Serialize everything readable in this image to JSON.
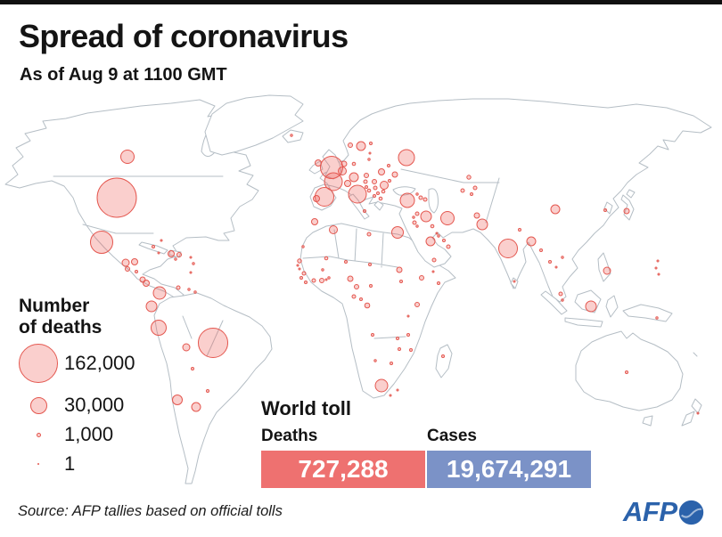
{
  "header": {
    "title": "Spread of coronavirus",
    "subtitle": "As of Aug 9 at 1100 GMT"
  },
  "legend": {
    "title": "Number\nof deaths",
    "items": [
      {
        "label": "162,000",
        "value": 162000,
        "diameter": 44
      },
      {
        "label": "30,000",
        "value": 30000,
        "diameter": 19
      },
      {
        "label": "1,000",
        "value": 1000,
        "diameter": 5
      },
      {
        "label": "1",
        "value": 1,
        "diameter": 2.5
      }
    ]
  },
  "world_toll": {
    "heading": "World toll",
    "deaths": {
      "label": "Deaths",
      "value": "727,288",
      "color": "#ee7170"
    },
    "cases": {
      "label": "Cases",
      "value": "19,674,291",
      "color": "#7b92c7"
    }
  },
  "footer": {
    "source": "Source: AFP tallies based on official tolls",
    "logo_text": "AFP"
  },
  "colors": {
    "bubble_fill": "rgba(237,96,88,0.30)",
    "bubble_stroke": "#e4574f",
    "map_outline": "#b5bec5",
    "accent_red": "#ee7170",
    "accent_blue": "#7b92c7",
    "afp_blue": "#2b62ab",
    "top_bar": "#101010"
  },
  "chart_data": {
    "type": "bubble-map",
    "title": "Spread of coronavirus",
    "unit": "number of deaths",
    "as_of": "Aug 9 at 1100 GMT",
    "scale": [
      162000,
      30000,
      1000,
      1
    ],
    "world_toll": {
      "deaths": 727288,
      "cases": 19674291
    },
    "bubbles": [
      [
        "united-states",
        131,
        222,
        22
      ],
      [
        "canada",
        143,
        176,
        7.5
      ],
      [
        "mexico",
        114,
        272,
        12.5
      ],
      [
        "guatemala",
        141,
        295,
        4
      ],
      [
        "honduras",
        151,
        294,
        3.5
      ],
      [
        "el-salvador",
        143,
        302,
        2.5
      ],
      [
        "nicaragua",
        153,
        305,
        1.5
      ],
      [
        "costa-rica",
        160,
        314,
        3
      ],
      [
        "panama",
        164,
        318,
        3.5
      ],
      [
        "cuba",
        172,
        277,
        1.5
      ],
      [
        "jamaica",
        178,
        284,
        1
      ],
      [
        "haiti",
        192,
        285,
        3.5
      ],
      [
        "dominican-republic",
        201,
        286,
        2.5
      ],
      [
        "puerto-rico",
        197,
        291,
        1.2
      ],
      [
        "bahamas",
        181,
        270,
        1
      ],
      [
        "antilles-1",
        214,
        289,
        1
      ],
      [
        "antilles-2",
        217,
        296,
        1.2
      ],
      [
        "trinidad",
        214,
        306,
        1
      ],
      [
        "venezuela",
        200,
        323,
        2
      ],
      [
        "guyana",
        212,
        325,
        1.2
      ],
      [
        "suriname",
        219,
        328,
        1.2
      ],
      [
        "colombia",
        179,
        329,
        7
      ],
      [
        "ecuador",
        170,
        344,
        6
      ],
      [
        "peru",
        178,
        368,
        8.5
      ],
      [
        "brazil",
        239,
        385,
        16.5
      ],
      [
        "bolivia",
        209,
        390,
        4
      ],
      [
        "paraguay",
        216,
        414,
        1.5
      ],
      [
        "chile",
        199,
        449,
        5.5
      ],
      [
        "argentina",
        220,
        457,
        5
      ],
      [
        "uruguay",
        233,
        439,
        1.5
      ],
      [
        "iceland",
        327,
        152,
        1.2
      ],
      [
        "ireland",
        357,
        183,
        3.5
      ],
      [
        "united-kingdom",
        372,
        188,
        12.5
      ],
      [
        "netherlands",
        386,
        184,
        3
      ],
      [
        "belgium",
        384,
        192,
        4.5
      ],
      [
        "france",
        374,
        204,
        10
      ],
      [
        "spain",
        364,
        221,
        10.5
      ],
      [
        "portugal",
        355,
        223,
        3.5
      ],
      [
        "italy",
        401,
        218,
        10
      ],
      [
        "germany",
        397,
        199,
        5
      ],
      [
        "switzerland",
        390,
        206,
        3.5
      ],
      [
        "denmark",
        397,
        184,
        1.8
      ],
      [
        "norway",
        393,
        163,
        2.5
      ],
      [
        "sweden",
        405,
        164,
        5
      ],
      [
        "finland",
        416,
        161,
        1.5
      ],
      [
        "estonia",
        415,
        172,
        1
      ],
      [
        "lithuania",
        414,
        179,
        1.2
      ],
      [
        "poland",
        428,
        193,
        3.5
      ],
      [
        "czech-republic",
        411,
        197,
        2.5
      ],
      [
        "austria",
        410,
        204,
        2
      ],
      [
        "hungary",
        420,
        204,
        2.5
      ],
      [
        "ukraine",
        443,
        196,
        3
      ],
      [
        "belarus",
        436,
        186,
        1.5
      ],
      [
        "moldova",
        437,
        203,
        1.5
      ],
      [
        "romania",
        431,
        208,
        4.5
      ],
      [
        "serbia",
        421,
        211,
        2
      ],
      [
        "bosnia",
        414,
        214,
        1.8
      ],
      [
        "croatia",
        411,
        210,
        1.5
      ],
      [
        "albania",
        420,
        220,
        1.5
      ],
      [
        "north-macedonia",
        424,
        217,
        1.5
      ],
      [
        "bulgaria",
        430,
        215,
        1.8
      ],
      [
        "greece",
        427,
        223,
        1.8
      ],
      [
        "russia",
        456,
        177,
        9
      ],
      [
        "kazakhstan",
        526,
        199,
        2.2
      ],
      [
        "turkey",
        457,
        225,
        8
      ],
      [
        "georgia",
        468,
        218,
        1.2
      ],
      [
        "armenia",
        472,
        222,
        2
      ],
      [
        "azerbaijan",
        477,
        224,
        2
      ],
      [
        "syria",
        468,
        240,
        2
      ],
      [
        "lebanon",
        464,
        244,
        1.2
      ],
      [
        "israel",
        465,
        250,
        2
      ],
      [
        "jordan",
        468,
        254,
        1.2
      ],
      [
        "iraq",
        478,
        243,
        6
      ],
      [
        "iran",
        502,
        245,
        7.5
      ],
      [
        "kuwait",
        485,
        254,
        1.8
      ],
      [
        "saudi-arabia",
        483,
        271,
        5
      ],
      [
        "bahrain",
        490,
        262,
        1
      ],
      [
        "qatar",
        492,
        265,
        1.2
      ],
      [
        "uae",
        498,
        270,
        1.5
      ],
      [
        "oman",
        503,
        277,
        2
      ],
      [
        "yemen",
        487,
        292,
        2
      ],
      [
        "egypt",
        446,
        261,
        6.5
      ],
      [
        "libya",
        414,
        263,
        2
      ],
      [
        "tunisia",
        409,
        237,
        1.5
      ],
      [
        "algeria",
        374,
        258,
        4.5
      ],
      [
        "morocco",
        353,
        249,
        3.5
      ],
      [
        "mauritania",
        340,
        277,
        1.2
      ],
      [
        "senegal",
        336,
        293,
        2.2
      ],
      [
        "gambia",
        334,
        298,
        1
      ],
      [
        "guinea-bissau",
        336,
        302,
        1
      ],
      [
        "guinea",
        341,
        307,
        2
      ],
      [
        "sierra-leone",
        338,
        312,
        1.5
      ],
      [
        "liberia",
        343,
        317,
        1.5
      ],
      [
        "ivory-coast",
        352,
        315,
        2
      ],
      [
        "ghana",
        361,
        315,
        2.5
      ],
      [
        "togo",
        366,
        314,
        1
      ],
      [
        "benin",
        369,
        312,
        1.2
      ],
      [
        "nigeria",
        393,
        313,
        3
      ],
      [
        "niger",
        388,
        294,
        1.5
      ],
      [
        "mali",
        366,
        290,
        1.8
      ],
      [
        "burkina-faso",
        362,
        303,
        1.2
      ],
      [
        "chad",
        415,
        297,
        1.5
      ],
      [
        "cameroon",
        400,
        322,
        2.5
      ],
      [
        "gabon",
        397,
        333,
        2
      ],
      [
        "congo",
        405,
        336,
        1.5
      ],
      [
        "dr-congo",
        412,
        343,
        2.8
      ],
      [
        "central-african-rep",
        416,
        321,
        1.5
      ],
      [
        "sudan",
        448,
        303,
        3
      ],
      [
        "south-sudan",
        450,
        316,
        1.5
      ],
      [
        "ethiopia",
        473,
        312,
        2.5
      ],
      [
        "somalia",
        492,
        318,
        1.5
      ],
      [
        "djibouti",
        486,
        305,
        1
      ],
      [
        "kenya",
        468,
        342,
        2.5
      ],
      [
        "tanzania",
        458,
        355,
        1
      ],
      [
        "angola",
        418,
        376,
        1.5
      ],
      [
        "zambia",
        446,
        380,
        1.5
      ],
      [
        "malawi",
        458,
        376,
        1.5
      ],
      [
        "zimbabwe",
        448,
        392,
        1.5
      ],
      [
        "mozambique",
        461,
        393,
        1.5
      ],
      [
        "namibia",
        421,
        405,
        1.2
      ],
      [
        "botswana",
        439,
        408,
        1.5
      ],
      [
        "south-africa",
        428,
        433,
        7
      ],
      [
        "lesotho",
        438,
        444,
        1
      ],
      [
        "eswatini",
        446,
        438,
        1
      ],
      [
        "madagascar",
        497,
        400,
        1.5
      ],
      [
        "uzbekistan",
        519,
        214,
        2
      ],
      [
        "kyrgyzstan",
        533,
        211,
        2
      ],
      [
        "tajikistan",
        529,
        218,
        1.5
      ],
      [
        "afghanistan",
        535,
        242,
        3
      ],
      [
        "pakistan",
        541,
        252,
        6
      ],
      [
        "india",
        570,
        279,
        10.5
      ],
      [
        "nepal",
        583,
        258,
        1.5
      ],
      [
        "bangladesh",
        596,
        271,
        5
      ],
      [
        "sri-lanka",
        577,
        316,
        1
      ],
      [
        "china",
        623,
        235,
        5
      ],
      [
        "south-korea",
        679,
        236,
        1.5
      ],
      [
        "japan",
        703,
        237,
        3
      ],
      [
        "myanmar",
        607,
        281,
        1.5
      ],
      [
        "thailand",
        617,
        294,
        1.5
      ],
      [
        "vietnam",
        631,
        289,
        1.2
      ],
      [
        "cambodia",
        624,
        300,
        1
      ],
      [
        "malaysia",
        629,
        330,
        2
      ],
      [
        "singapore",
        631,
        337,
        1.2
      ],
      [
        "indonesia",
        663,
        344,
        6
      ],
      [
        "philippines",
        681,
        304,
        4
      ],
      [
        "papua-new-guinea",
        737,
        357,
        1.2
      ],
      [
        "australia",
        703,
        418,
        1.5
      ],
      [
        "new-zealand",
        783,
        464,
        1
      ],
      [
        "pacific-1",
        738,
        293,
        1
      ],
      [
        "pacific-2",
        736,
        301,
        1
      ],
      [
        "pacific-3",
        739,
        308,
        1
      ]
    ]
  }
}
